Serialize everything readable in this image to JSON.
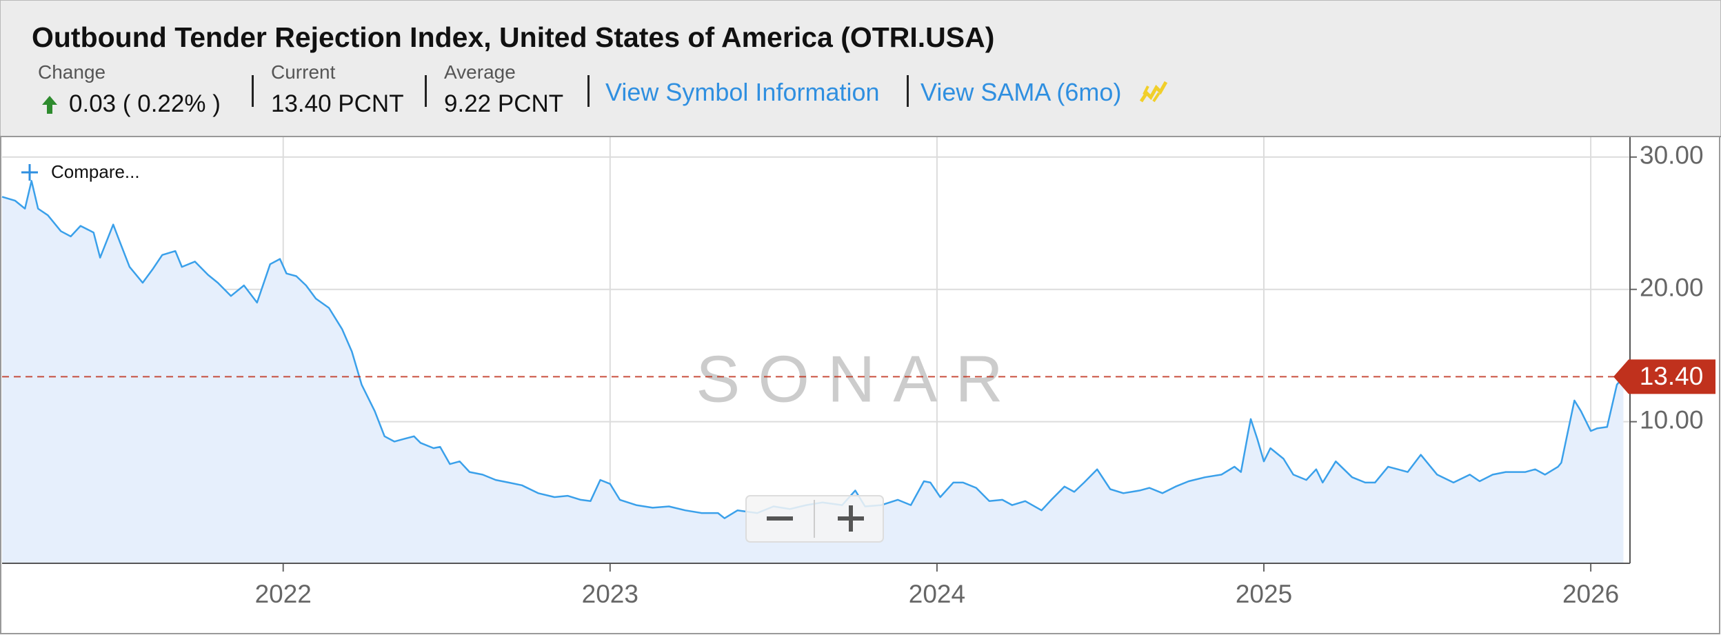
{
  "header": {
    "change_label": "Change",
    "change_value": "0.03 ( 0.22% )",
    "current_label": "Current",
    "current_value": "13.40 PCNT",
    "average_label": "Average",
    "average_value": "9.22 PCNT",
    "link_symbol": "View Symbol Information",
    "link_sama": "View SAMA (6mo)"
  },
  "compare": "Compare...",
  "watermark": "SONAR",
  "chart_data": {
    "type": "area",
    "title": "Outbound Tender Rejection Index, United States of America (OTRI.USA)",
    "color": "#3aa0ea",
    "fill": "#e6effc",
    "x": [
      2021.14,
      2021.18,
      2021.21,
      2021.23,
      2021.25,
      2021.28,
      2021.32,
      2021.35,
      2021.38,
      2021.42,
      2021.44,
      2021.48,
      2021.5,
      2021.53,
      2021.57,
      2021.6,
      2021.63,
      2021.67,
      2021.69,
      2021.73,
      2021.77,
      2021.8,
      2021.84,
      2021.88,
      2021.92,
      2021.96,
      2021.99,
      2022.01,
      2022.04,
      2022.07,
      2022.1,
      2022.14,
      2022.18,
      2022.21,
      2022.24,
      2022.28,
      2022.31,
      2022.34,
      2022.37,
      2022.4,
      2022.42,
      2022.46,
      2022.48,
      2022.51,
      2022.54,
      2022.57,
      2022.61,
      2022.65,
      2022.69,
      2022.73,
      2022.78,
      2022.83,
      2022.87,
      2022.91,
      2022.94,
      2022.97,
      2023.0,
      2023.03,
      2023.08,
      2023.13,
      2023.18,
      2023.23,
      2023.28,
      2023.33,
      2023.35,
      2023.39,
      2023.45,
      2023.5,
      2023.55,
      2023.6,
      2023.65,
      2023.71,
      2023.75,
      2023.78,
      2023.83,
      2023.88,
      2023.92,
      2023.96,
      2023.98,
      2024.01,
      2024.05,
      2024.08,
      2024.12,
      2024.16,
      2024.2,
      2024.23,
      2024.27,
      2024.32,
      2024.35,
      2024.39,
      2024.42,
      2024.45,
      2024.49,
      2024.53,
      2024.57,
      2024.62,
      2024.65,
      2024.69,
      2024.73,
      2024.77,
      2024.82,
      2024.87,
      2024.91,
      2024.93,
      2024.96,
      2024.98,
      2025.0,
      2025.02,
      2025.06,
      2025.09,
      2025.13,
      2025.16,
      2025.18,
      2025.22,
      2025.27,
      2025.31,
      2025.34,
      2025.38,
      2025.41,
      2025.44,
      2025.48,
      2025.53,
      2025.58,
      2025.63,
      2025.66,
      2025.7,
      2025.74,
      2025.8,
      2025.83,
      2025.86,
      2025.9,
      2025.91,
      2025.95,
      2025.97,
      2026.0,
      2026.02,
      2026.05,
      2026.08,
      2026.1
    ],
    "values": [
      27.0,
      26.7,
      26.1,
      28.2,
      26.1,
      25.6,
      24.4,
      24.0,
      24.8,
      24.3,
      22.4,
      24.9,
      23.6,
      21.7,
      20.5,
      21.5,
      22.6,
      22.9,
      21.7,
      22.1,
      21.1,
      20.5,
      19.5,
      20.3,
      19.0,
      21.9,
      22.3,
      21.2,
      21.0,
      20.3,
      19.3,
      18.6,
      17.0,
      15.3,
      12.8,
      10.8,
      8.9,
      8.5,
      8.7,
      8.9,
      8.4,
      8.0,
      8.1,
      6.8,
      7.0,
      6.2,
      6.0,
      5.6,
      5.4,
      5.2,
      4.6,
      4.3,
      4.4,
      4.1,
      4.0,
      5.6,
      5.3,
      4.1,
      3.7,
      3.5,
      3.6,
      3.3,
      3.1,
      3.1,
      2.7,
      3.3,
      3.1,
      3.6,
      3.4,
      3.7,
      3.9,
      3.7,
      4.8,
      3.6,
      3.7,
      4.1,
      3.7,
      5.5,
      5.4,
      4.3,
      5.4,
      5.4,
      5.0,
      4.0,
      4.1,
      3.7,
      4.0,
      3.3,
      4.1,
      5.1,
      4.7,
      5.4,
      6.4,
      4.9,
      4.6,
      4.8,
      5.0,
      4.6,
      5.1,
      5.5,
      5.8,
      6.0,
      6.6,
      6.2,
      10.2,
      8.7,
      7.0,
      8.0,
      7.2,
      6.0,
      5.6,
      6.4,
      5.4,
      7.0,
      5.8,
      5.4,
      5.4,
      6.6,
      6.4,
      6.2,
      7.5,
      6.0,
      5.4,
      6.0,
      5.5,
      6.0,
      6.2,
      6.2,
      6.4,
      6.0,
      6.6,
      6.9,
      11.6,
      10.8,
      9.3,
      9.5,
      9.6,
      12.8,
      13.4
    ],
    "xlim": [
      2021.14,
      2026.12
    ],
    "xticks": [
      2022,
      2023,
      2024,
      2025,
      2026
    ],
    "ylim": [
      -0.7,
      31.5
    ],
    "yticks": [
      {
        "value": 10,
        "label": "10.00"
      },
      {
        "value": 20,
        "label": "20.00"
      },
      {
        "value": 30,
        "label": "30.00"
      }
    ],
    "grid": true,
    "current_line": {
      "value": 13.4,
      "label": "13.40",
      "color": "#c0311d"
    }
  }
}
